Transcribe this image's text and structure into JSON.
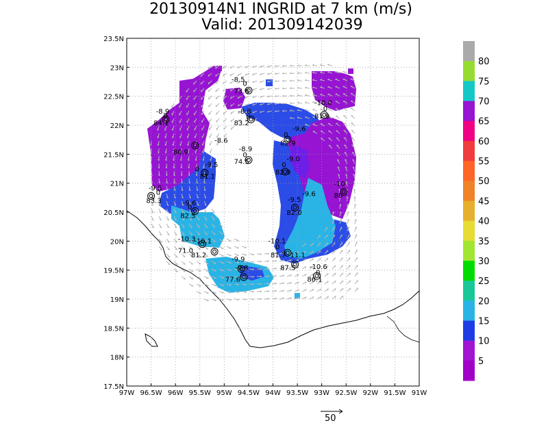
{
  "title": {
    "line1": "20130914N1 INGRID at 7 km (m/s)",
    "line2": "Valid: 201309142039"
  },
  "map": {
    "lat_labels": [
      "23.5N",
      "23N",
      "22.5N",
      "22N",
      "21.5N",
      "21N",
      "20.5N",
      "20N",
      "19.5N",
      "19N",
      "18.5N",
      "18N",
      "17.5N"
    ],
    "lon_labels": [
      "97W",
      "96.5W",
      "96W",
      "95.5W",
      "95W",
      "94.5W",
      "94W",
      "93.5W",
      "93W",
      "92.5W",
      "92W",
      "91.5W",
      "91W"
    ],
    "lat_range": [
      17.5,
      23.5
    ],
    "lon_range": [
      -97,
      -91
    ],
    "grid": true,
    "vector_scale_label": "50",
    "station_labels": [
      {
        "text": "-8.5",
        "lon": -94.85,
        "lat": 22.75
      },
      {
        "text": "0",
        "lon": -94.62,
        "lat": 22.68
      },
      {
        "text": "73.6",
        "lon": -94.8,
        "lat": 22.55
      },
      {
        "text": "-8.9",
        "lon": -96.4,
        "lat": 22.2
      },
      {
        "text": "0",
        "lon": -96.25,
        "lat": 22.12
      },
      {
        "text": "84.1",
        "lon": -96.45,
        "lat": 22.0
      },
      {
        "text": "-8.8",
        "lon": -94.72,
        "lat": 22.2
      },
      {
        "text": "0",
        "lon": -94.55,
        "lat": 22.1
      },
      {
        "text": "83.2",
        "lon": -94.8,
        "lat": 22.0
      },
      {
        "text": "-10.0",
        "lon": -93.15,
        "lat": 22.35
      },
      {
        "text": "0",
        "lon": -92.97,
        "lat": 22.25
      },
      {
        "text": "81.9",
        "lon": -93.15,
        "lat": 22.12
      },
      {
        "text": "-8.6",
        "lon": -95.2,
        "lat": 21.7
      },
      {
        "text": "80.9",
        "lon": -96.05,
        "lat": 21.5
      },
      {
        "text": "-9.6",
        "lon": -93.6,
        "lat": 21.9
      },
      {
        "text": "0",
        "lon": -93.78,
        "lat": 21.8
      },
      {
        "text": "82.9",
        "lon": -93.85,
        "lat": 21.65
      },
      {
        "text": "-8.9",
        "lon": -94.7,
        "lat": 21.55
      },
      {
        "text": "0",
        "lon": -94.62,
        "lat": 21.45
      },
      {
        "text": "74.5",
        "lon": -94.8,
        "lat": 21.33
      },
      {
        "text": "-9.0",
        "lon": -93.72,
        "lat": 21.38
      },
      {
        "text": "0",
        "lon": -93.82,
        "lat": 21.28
      },
      {
        "text": "82.9",
        "lon": -93.95,
        "lat": 21.15
      },
      {
        "text": "-9.5",
        "lon": -95.4,
        "lat": 21.28
      },
      {
        "text": "0",
        "lon": -95.6,
        "lat": 21.2
      },
      {
        "text": "81.1",
        "lon": -95.5,
        "lat": 21.08
      },
      {
        "text": "-9.5",
        "lon": -96.55,
        "lat": 20.88
      },
      {
        "text": "0",
        "lon": -96.4,
        "lat": 20.8
      },
      {
        "text": "83.3",
        "lon": -96.6,
        "lat": 20.66
      },
      {
        "text": "-10",
        "lon": -92.75,
        "lat": 20.95
      },
      {
        "text": "80",
        "lon": -92.75,
        "lat": 20.75
      },
      {
        "text": "-9.6",
        "lon": -95.85,
        "lat": 20.62
      },
      {
        "text": "0",
        "lon": -95.75,
        "lat": 20.55
      },
      {
        "text": "82.5",
        "lon": -95.9,
        "lat": 20.4
      },
      {
        "text": "-9.6",
        "lon": -93.4,
        "lat": 20.78
      },
      {
        "text": "-9.5",
        "lon": -93.7,
        "lat": 20.68
      },
      {
        "text": "82.0",
        "lon": -93.72,
        "lat": 20.45
      },
      {
        "text": "-10.3",
        "lon": -95.95,
        "lat": 20.0
      },
      {
        "text": "-10.1",
        "lon": -95.62,
        "lat": 19.96
      },
      {
        "text": "71.0",
        "lon": -95.95,
        "lat": 19.8
      },
      {
        "text": "81.2",
        "lon": -95.68,
        "lat": 19.72
      },
      {
        "text": "-10.1",
        "lon": -94.1,
        "lat": 19.96
      },
      {
        "text": "0",
        "lon": -93.95,
        "lat": 19.86
      },
      {
        "text": "81.7",
        "lon": -94.05,
        "lat": 19.72
      },
      {
        "text": "-11.1",
        "lon": -93.7,
        "lat": 19.72
      },
      {
        "text": "-9.9",
        "lon": -94.85,
        "lat": 19.65
      },
      {
        "text": "-9.8",
        "lon": -94.78,
        "lat": 19.5
      },
      {
        "text": "87.5",
        "lon": -93.85,
        "lat": 19.5
      },
      {
        "text": "-10.6",
        "lon": -93.25,
        "lat": 19.52
      },
      {
        "text": "0",
        "lon": -93.12,
        "lat": 19.42
      },
      {
        "text": "86.1",
        "lon": -93.3,
        "lat": 19.3
      },
      {
        "text": "77.6",
        "lon": -94.98,
        "lat": 19.3
      }
    ]
  },
  "colorbar": {
    "labels": [
      "80",
      "75",
      "70",
      "65",
      "60",
      "55",
      "50",
      "45",
      "40",
      "35",
      "30",
      "25",
      "20",
      "15",
      "10",
      "5"
    ],
    "colors": [
      "#aaaaaa",
      "#96dc30",
      "#14c8c8",
      "#9614d2",
      "#f00082",
      "#f03c3c",
      "#ff6428",
      "#f08228",
      "#e6af2d",
      "#e6dc32",
      "#a0e632",
      "#00dc00",
      "#19c896",
      "#2ab4e6",
      "#1e3ce6",
      "#a014d2",
      "#a000c8"
    ]
  },
  "colors": {
    "purple": "#9614d2",
    "violet": "#6e1ee6",
    "blue": "#2b4ce6",
    "cyan": "#2ab4e6"
  }
}
